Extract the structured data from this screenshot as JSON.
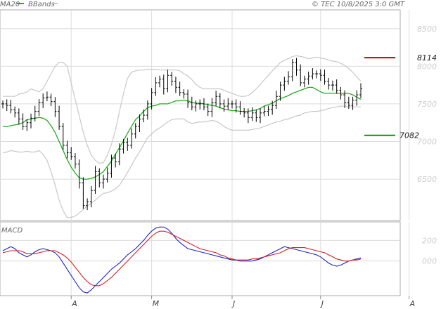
{
  "header": {
    "ma_label": "MA20",
    "bb_label": "BBands",
    "copyright": "© TEC 10/8/2025 3:0 GMT"
  },
  "macd_label": "MACD",
  "colors": {
    "ma": "#22aa22",
    "bands": "#c8c8c8",
    "bars": "#000000",
    "macd": "#2222cc",
    "signal": "#cc2222",
    "resistance": "#cc0000",
    "support": "#009900",
    "grid": "#dcdcdc"
  },
  "levels": {
    "resistance": {
      "value": 8114,
      "label": "8114"
    },
    "support": {
      "value": 7082,
      "label": "7082"
    }
  },
  "chart_data": [
    {
      "type": "ohlc",
      "title": "",
      "y_ticks": [
        {
          "value": 8500,
          "label": "8500"
        },
        {
          "value": 8000,
          "label": "8000"
        },
        {
          "value": 7500,
          "label": "7500"
        },
        {
          "value": 7000,
          "label": "7000"
        },
        {
          "value": 6500,
          "label": "6500"
        }
      ],
      "x_ticks": [
        "A",
        "M",
        "J",
        "J",
        "A"
      ],
      "x_tick_index": [
        17,
        37,
        57,
        79,
        101
      ],
      "ylim": [
        5950,
        8750
      ],
      "grid": true,
      "close": [
        7500,
        7480,
        7420,
        7380,
        7300,
        7200,
        7250,
        7310,
        7400,
        7520,
        7580,
        7590,
        7530,
        7400,
        7200,
        6950,
        6850,
        6800,
        6700,
        6450,
        6150,
        6200,
        6350,
        6600,
        6450,
        6500,
        6580,
        6780,
        6730,
        6900,
        6990,
        6950,
        7100,
        7200,
        7300,
        7350,
        7500,
        7650,
        7780,
        7830,
        7700,
        7880,
        7800,
        7720,
        7650,
        7630,
        7520,
        7460,
        7500,
        7500,
        7460,
        7400,
        7520,
        7600,
        7500,
        7470,
        7500,
        7500,
        7460,
        7400,
        7380,
        7320,
        7380,
        7320,
        7380,
        7400,
        7430,
        7480,
        7600,
        7750,
        7800,
        7860,
        8050,
        7950,
        7780,
        7830,
        7870,
        7900,
        7900,
        7880,
        7800,
        7750,
        7750,
        7680,
        7620,
        7520,
        7480,
        7550,
        7620,
        7700
      ],
      "ma20": [
        7200,
        7200,
        7210,
        7220,
        7230,
        7250,
        7290,
        7300,
        7310,
        7320,
        7310,
        7280,
        7210,
        7120,
        7000,
        6880,
        6760,
        6660,
        6580,
        6520,
        6500,
        6500,
        6510,
        6530,
        6560,
        6600,
        6670,
        6740,
        6830,
        6920,
        7010,
        7110,
        7200,
        7290,
        7340,
        7400,
        7450,
        7470,
        7480,
        7500,
        7500,
        7500,
        7520,
        7540,
        7540,
        7550,
        7540,
        7520,
        7510,
        7510,
        7500,
        7490,
        7480,
        7470,
        7450,
        7430,
        7420,
        7410,
        7410,
        7400,
        7400,
        7400,
        7410,
        7420,
        7440,
        7470,
        7490,
        7510,
        7540,
        7570,
        7590,
        7610,
        7640,
        7660,
        7680,
        7700,
        7720,
        7720,
        7690,
        7660,
        7640,
        7640,
        7640,
        7640,
        7640,
        7640,
        7640,
        7620,
        7590,
        7560
      ],
      "bb_upper": [
        7600,
        7600,
        7600,
        7600,
        7630,
        7640,
        7660,
        7700,
        7680,
        7660,
        7700,
        7800,
        7900,
        8000,
        8050,
        8050,
        8000,
        7780,
        7560,
        7340,
        7120,
        6950,
        6820,
        6750,
        6710,
        6720,
        6820,
        6960,
        7150,
        7400,
        7640,
        7840,
        7920,
        7940,
        7950,
        7950,
        7960,
        7960,
        7960,
        7950,
        7950,
        7950,
        7950,
        7950,
        7940,
        7900,
        7870,
        7820,
        7760,
        7720,
        7700,
        7700,
        7700,
        7700,
        7700,
        7680,
        7660,
        7640,
        7620,
        7600,
        7600,
        7610,
        7650,
        7700,
        7760,
        7820,
        7880,
        7940,
        7990,
        8050,
        8080,
        8100,
        8130,
        8140,
        8130,
        8120,
        8100,
        8110,
        8120,
        8110,
        8100,
        8080,
        8070,
        8060,
        8040,
        8010,
        7970,
        7920,
        7860,
        7800
      ],
      "bb_lower": [
        6850,
        6860,
        6880,
        6870,
        6860,
        6860,
        6870,
        6860,
        6860,
        6880,
        6830,
        6750,
        6600,
        6420,
        6220,
        6080,
        5990,
        5990,
        6010,
        6050,
        6100,
        6140,
        6180,
        6220,
        6270,
        6310,
        6320,
        6340,
        6370,
        6420,
        6500,
        6590,
        6680,
        6780,
        6860,
        6960,
        7050,
        7100,
        7150,
        7180,
        7220,
        7260,
        7290,
        7300,
        7300,
        7300,
        7260,
        7240,
        7250,
        7260,
        7260,
        7270,
        7280,
        7270,
        7240,
        7200,
        7170,
        7150,
        7150,
        7150,
        7150,
        7150,
        7160,
        7170,
        7180,
        7200,
        7220,
        7240,
        7260,
        7270,
        7290,
        7300,
        7320,
        7340,
        7350,
        7380,
        7390,
        7400,
        7400,
        7410,
        7420,
        7440,
        7450,
        7460,
        7470,
        7470,
        7460,
        7460,
        7460,
        7460
      ]
    },
    {
      "type": "line",
      "title": "MACD",
      "y_ticks": [
        {
          "value": 200,
          "label": "200"
        },
        {
          "value": 0,
          "label": "000"
        }
      ],
      "ylim": [
        -330,
        380
      ],
      "series": [
        {
          "values": [
            100,
            120,
            140,
            120,
            80,
            60,
            40,
            60,
            90,
            110,
            120,
            110,
            100,
            80,
            40,
            -20,
            -80,
            -140,
            -200,
            -260,
            -300,
            -310,
            -280,
            -240,
            -200,
            -160,
            -120,
            -80,
            -50,
            -20,
            20,
            60,
            90,
            120,
            160,
            200,
            250,
            290,
            320,
            330,
            330,
            310,
            270,
            220,
            180,
            150,
            120,
            110,
            100,
            90,
            80,
            70,
            60,
            50,
            40,
            30,
            20,
            10,
            10,
            0,
            0,
            0,
            0,
            10,
            20,
            40,
            60,
            80,
            100,
            120,
            140,
            130,
            120,
            110,
            100,
            90,
            80,
            70,
            60,
            40,
            10,
            -20,
            -40,
            -50,
            -40,
            -20,
            0,
            10,
            20,
            30
          ],
          "color_key": "macd"
        },
        {
          "values": [
            80,
            90,
            100,
            100,
            100,
            90,
            70,
            70,
            70,
            80,
            90,
            100,
            100,
            100,
            80,
            60,
            30,
            -10,
            -60,
            -110,
            -160,
            -200,
            -230,
            -240,
            -240,
            -220,
            -190,
            -160,
            -120,
            -80,
            -40,
            0,
            40,
            80,
            120,
            160,
            200,
            240,
            270,
            290,
            290,
            280,
            260,
            240,
            220,
            200,
            180,
            160,
            140,
            120,
            110,
            100,
            90,
            80,
            60,
            50,
            30,
            20,
            10,
            10,
            10,
            10,
            20,
            20,
            30,
            40,
            50,
            60,
            70,
            80,
            100,
            120,
            130,
            130,
            130,
            130,
            120,
            110,
            100,
            90,
            80,
            60,
            40,
            20,
            10,
            0,
            0,
            10,
            10,
            20
          ],
          "color_key": "signal"
        }
      ]
    }
  ]
}
